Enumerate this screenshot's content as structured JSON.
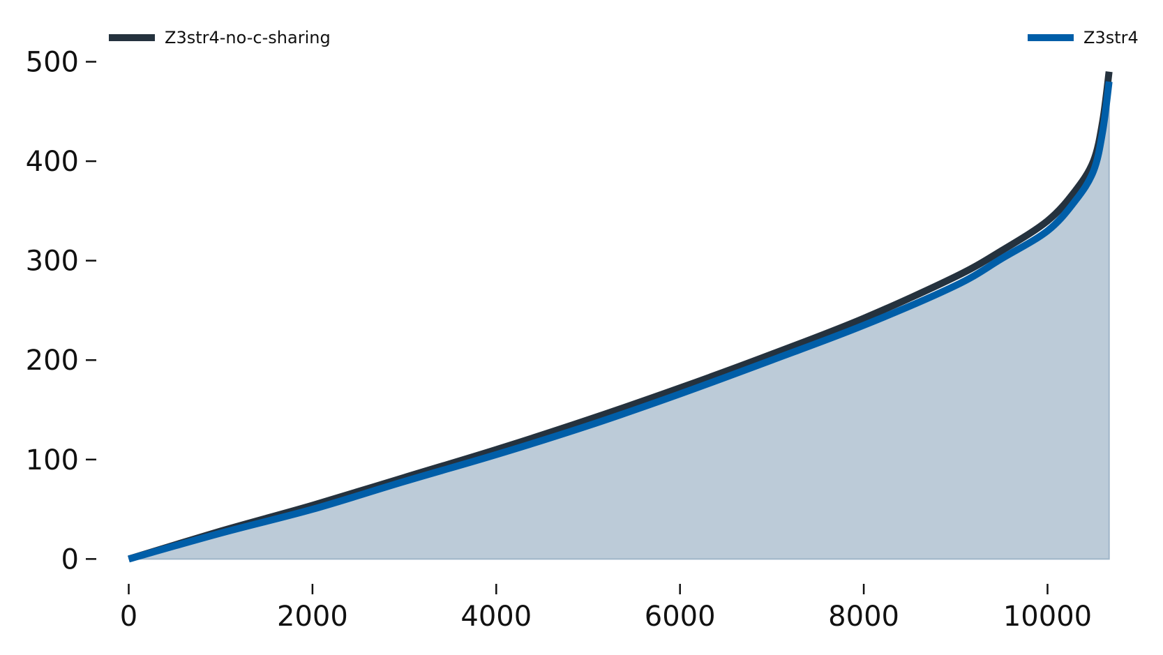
{
  "chart_data": {
    "type": "line",
    "title": "",
    "xlabel": "",
    "ylabel": "",
    "xlim": [
      -300,
      10900
    ],
    "ylim": [
      -25,
      520
    ],
    "xticks": [
      0,
      2000,
      4000,
      6000,
      8000,
      10000
    ],
    "yticks": [
      0,
      100,
      200,
      300,
      400,
      500
    ],
    "xtick_labels": [
      "0",
      "2000",
      "4000",
      "6000",
      "8000",
      "10000"
    ],
    "ytick_labels": [
      "0",
      "100",
      "200",
      "300",
      "400",
      "500"
    ],
    "grid": false,
    "legend": [
      {
        "name": "Z3str4-no-c-sharing",
        "color": "#25323e",
        "placement": "top-left"
      },
      {
        "name": "Z3str4",
        "color": "#005ea8",
        "placement": "top-right"
      }
    ],
    "fill_color": "#bccbd8",
    "series": [
      {
        "name": "Z3str4-no-c-sharing",
        "color": "#25323e",
        "points": [
          [
            0,
            0
          ],
          [
            1000,
            28
          ],
          [
            2000,
            54
          ],
          [
            3000,
            82
          ],
          [
            4000,
            110
          ],
          [
            5000,
            140
          ],
          [
            6000,
            172
          ],
          [
            7000,
            206
          ],
          [
            8000,
            242
          ],
          [
            9000,
            284
          ],
          [
            9500,
            310
          ],
          [
            10000,
            340
          ],
          [
            10300,
            370
          ],
          [
            10500,
            400
          ],
          [
            10600,
            440
          ],
          [
            10670,
            490
          ]
        ]
      },
      {
        "name": "Z3str4",
        "color": "#005ea8",
        "points": [
          [
            0,
            0
          ],
          [
            1000,
            26
          ],
          [
            2000,
            50
          ],
          [
            3000,
            78
          ],
          [
            4000,
            105
          ],
          [
            5000,
            134
          ],
          [
            6000,
            166
          ],
          [
            7000,
            200
          ],
          [
            8000,
            235
          ],
          [
            9000,
            275
          ],
          [
            9500,
            302
          ],
          [
            10000,
            330
          ],
          [
            10300,
            360
          ],
          [
            10500,
            390
          ],
          [
            10600,
            430
          ],
          [
            10670,
            480
          ]
        ]
      }
    ]
  }
}
